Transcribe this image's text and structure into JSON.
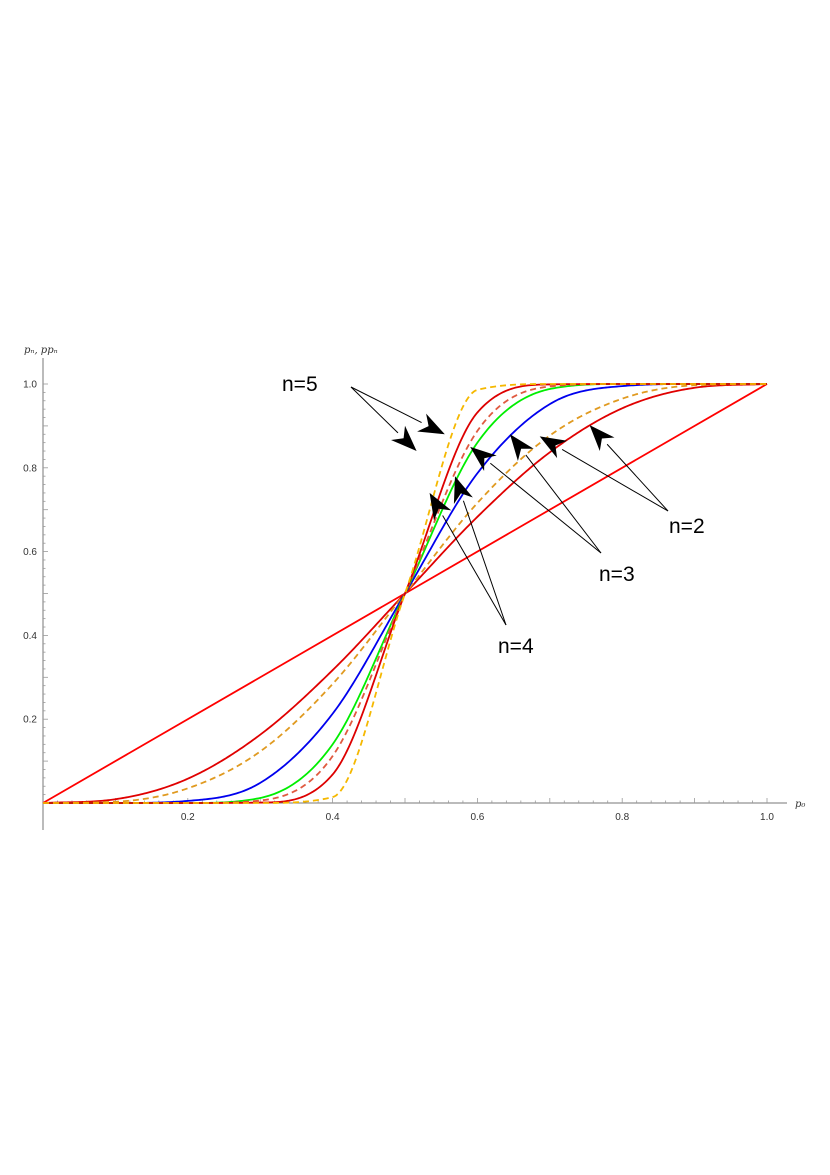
{
  "chart_data": {
    "type": "line",
    "xlabel": "p₀",
    "ylabel": "pₙ, ppₙ",
    "xlim": [
      0,
      1
    ],
    "ylim": [
      0,
      1
    ],
    "xticks": [
      0.2,
      0.4,
      0.6,
      0.8,
      1.0
    ],
    "xtick_labels": [
      "0.2",
      "0.4",
      "0.6",
      "0.8",
      "1.0"
    ],
    "yticks": [
      0.2,
      0.4,
      0.6,
      0.8,
      1.0
    ],
    "ytick_labels": [
      "0.2",
      "0.4",
      "0.6",
      "0.8",
      "1.0"
    ],
    "grid": false,
    "legend": "none",
    "series": [
      {
        "color": "#ff0000",
        "dash": false,
        "kind": "diagonal",
        "x": [
          0,
          1
        ],
        "y": [
          0,
          1
        ]
      },
      {
        "color": "#e00000",
        "dash": false,
        "kind": "sigmoid",
        "x": [
          0,
          0.1,
          0.2,
          0.3,
          0.4,
          0.5,
          0.6,
          0.7,
          0.8,
          0.9,
          1.0
        ],
        "y": [
          0,
          0.009,
          0.058,
          0.163,
          0.317,
          0.5,
          0.683,
          0.837,
          0.942,
          0.991,
          1.0
        ]
      },
      {
        "color": "#e09a20",
        "dash": true,
        "kind": "sigmoid",
        "x": [
          0,
          0.1,
          0.2,
          0.3,
          0.4,
          0.5,
          0.6,
          0.7,
          0.8,
          0.9,
          1.0
        ],
        "y": [
          0,
          0.003,
          0.035,
          0.123,
          0.284,
          0.5,
          0.716,
          0.877,
          0.965,
          0.997,
          1.0
        ]
      },
      {
        "color": "#0000ee",
        "dash": false,
        "kind": "sigmoid",
        "x": [
          0,
          0.1,
          0.2,
          0.3,
          0.4,
          0.5,
          0.6,
          0.7,
          0.8,
          0.9,
          1.0
        ],
        "y": [
          0,
          0.0,
          0.005,
          0.048,
          0.213,
          0.5,
          0.787,
          0.952,
          0.995,
          1.0,
          1.0
        ]
      },
      {
        "color": "#00ee00",
        "dash": false,
        "kind": "sigmoid",
        "x": [
          0,
          0.1,
          0.2,
          0.3,
          0.4,
          0.5,
          0.6,
          0.7,
          0.8,
          0.9,
          1.0
        ],
        "y": [
          0,
          0.0,
          0.0,
          0.012,
          0.14,
          0.5,
          0.86,
          0.988,
          1.0,
          1.0,
          1.0
        ]
      },
      {
        "color": "#e05a40",
        "dash": true,
        "kind": "sigmoid",
        "x": [
          0,
          0.1,
          0.2,
          0.3,
          0.4,
          0.5,
          0.6,
          0.7,
          0.8,
          0.9,
          1.0
        ],
        "y": [
          0,
          0.0,
          0.0,
          0.006,
          0.112,
          0.5,
          0.888,
          0.994,
          1.0,
          1.0,
          1.0
        ]
      },
      {
        "color": "#dd0000",
        "dash": false,
        "kind": "sigmoid",
        "x": [
          0,
          0.1,
          0.2,
          0.3,
          0.4,
          0.5,
          0.6,
          0.7,
          0.8,
          0.9,
          1.0
        ],
        "y": [
          0,
          0.0,
          0.0,
          0.001,
          0.068,
          0.5,
          0.932,
          0.999,
          1.0,
          1.0,
          1.0
        ]
      },
      {
        "color": "#f5b800",
        "dash": true,
        "kind": "sigmoid",
        "x": [
          0,
          0.1,
          0.2,
          0.3,
          0.4,
          0.5,
          0.6,
          0.7,
          0.8,
          0.9,
          1.0
        ],
        "y": [
          0,
          0.0,
          0.0,
          0.0,
          0.014,
          0.5,
          0.986,
          1.0,
          1.0,
          1.0,
          1.0
        ]
      }
    ],
    "annotations": [
      {
        "text": "n=5",
        "arrows": [
          {
            "x": 0.516,
            "y": 0.84
          },
          {
            "x": 0.555,
            "y": 0.88
          }
        ]
      },
      {
        "text": "n=2",
        "arrows": [
          {
            "x": 0.686,
            "y": 0.875
          },
          {
            "x": 0.755,
            "y": 0.902
          }
        ]
      },
      {
        "text": "n=3",
        "arrows": [
          {
            "x": 0.59,
            "y": 0.85
          },
          {
            "x": 0.645,
            "y": 0.88
          }
        ]
      },
      {
        "text": "n=4",
        "arrows": [
          {
            "x": 0.534,
            "y": 0.74
          },
          {
            "x": 0.569,
            "y": 0.78
          }
        ]
      }
    ]
  }
}
